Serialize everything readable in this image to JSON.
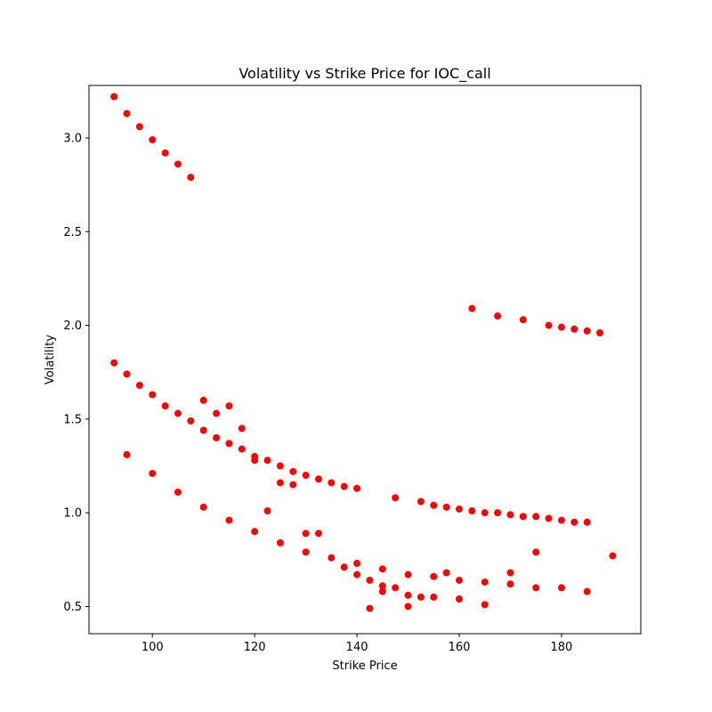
{
  "chart_data": {
    "type": "scatter",
    "title": "Volatility vs Strike Price for IOC_call",
    "xlabel": "Strike Price",
    "ylabel": "Volatility",
    "xlim": [
      87.6,
      195.5
    ],
    "ylim": [
      0.355,
      3.28
    ],
    "xticks": [
      100,
      120,
      140,
      160,
      180
    ],
    "yticks": [
      0.5,
      1.0,
      1.5,
      2.0,
      2.5,
      3.0
    ],
    "xtick_labels": [
      "100",
      "120",
      "140",
      "160",
      "180"
    ],
    "ytick_labels": [
      "0.5",
      "1.0",
      "1.5",
      "2.0",
      "2.5",
      "3.0"
    ],
    "grid": false,
    "marker_color": "#ff0000",
    "points": [
      [
        92.5,
        3.22
      ],
      [
        95,
        3.13
      ],
      [
        97.5,
        3.06
      ],
      [
        100,
        2.99
      ],
      [
        102.5,
        2.92
      ],
      [
        105,
        2.86
      ],
      [
        107.5,
        2.79
      ],
      [
        162.5,
        2.09
      ],
      [
        167.5,
        2.05
      ],
      [
        172.5,
        2.03
      ],
      [
        177.5,
        2.0
      ],
      [
        180,
        1.99
      ],
      [
        182.5,
        1.98
      ],
      [
        185,
        1.97
      ],
      [
        187.5,
        1.96
      ],
      [
        92.5,
        1.8
      ],
      [
        95,
        1.74
      ],
      [
        97.5,
        1.68
      ],
      [
        100,
        1.63
      ],
      [
        102.5,
        1.57
      ],
      [
        105,
        1.53
      ],
      [
        107.5,
        1.49
      ],
      [
        110,
        1.44
      ],
      [
        112.5,
        1.4
      ],
      [
        115,
        1.37
      ],
      [
        117.5,
        1.34
      ],
      [
        120,
        1.3
      ],
      [
        122.5,
        1.28
      ],
      [
        125,
        1.25
      ],
      [
        127.5,
        1.22
      ],
      [
        130,
        1.2
      ],
      [
        132.5,
        1.18
      ],
      [
        135,
        1.16
      ],
      [
        137.5,
        1.14
      ],
      [
        140,
        1.13
      ],
      [
        110,
        1.6
      ],
      [
        112.5,
        1.53
      ],
      [
        115,
        1.57
      ],
      [
        117.5,
        1.45
      ],
      [
        120,
        1.28
      ],
      [
        125,
        1.16
      ],
      [
        127.5,
        1.15
      ],
      [
        147.5,
        1.08
      ],
      [
        152.5,
        1.06
      ],
      [
        155,
        1.04
      ],
      [
        157.5,
        1.03
      ],
      [
        160,
        1.02
      ],
      [
        162.5,
        1.01
      ],
      [
        165,
        1.0
      ],
      [
        167.5,
        1.0
      ],
      [
        170,
        0.99
      ],
      [
        172.5,
        0.98
      ],
      [
        175,
        0.98
      ],
      [
        177.5,
        0.97
      ],
      [
        180,
        0.96
      ],
      [
        182.5,
        0.95
      ],
      [
        185,
        0.95
      ],
      [
        95,
        1.31
      ],
      [
        100,
        1.21
      ],
      [
        105,
        1.11
      ],
      [
        110,
        1.03
      ],
      [
        115,
        0.96
      ],
      [
        120,
        0.9
      ],
      [
        122.5,
        1.01
      ],
      [
        125,
        0.84
      ],
      [
        130,
        0.89
      ],
      [
        132.5,
        0.89
      ],
      [
        130,
        0.79
      ],
      [
        135,
        0.76
      ],
      [
        137.5,
        0.71
      ],
      [
        140,
        0.73
      ],
      [
        140,
        0.67
      ],
      [
        142.5,
        0.64
      ],
      [
        142.5,
        0.49
      ],
      [
        145,
        0.7
      ],
      [
        145,
        0.61
      ],
      [
        145,
        0.58
      ],
      [
        147.5,
        0.6
      ],
      [
        150,
        0.67
      ],
      [
        150,
        0.56
      ],
      [
        150,
        0.5
      ],
      [
        152.5,
        0.55
      ],
      [
        155,
        0.55
      ],
      [
        155,
        0.66
      ],
      [
        157.5,
        0.68
      ],
      [
        160,
        0.64
      ],
      [
        160,
        0.54
      ],
      [
        165,
        0.63
      ],
      [
        165,
        0.51
      ],
      [
        170,
        0.68
      ],
      [
        170,
        0.62
      ],
      [
        175,
        0.79
      ],
      [
        175,
        0.6
      ],
      [
        180,
        0.6
      ],
      [
        185,
        0.58
      ],
      [
        190,
        0.77
      ]
    ]
  }
}
